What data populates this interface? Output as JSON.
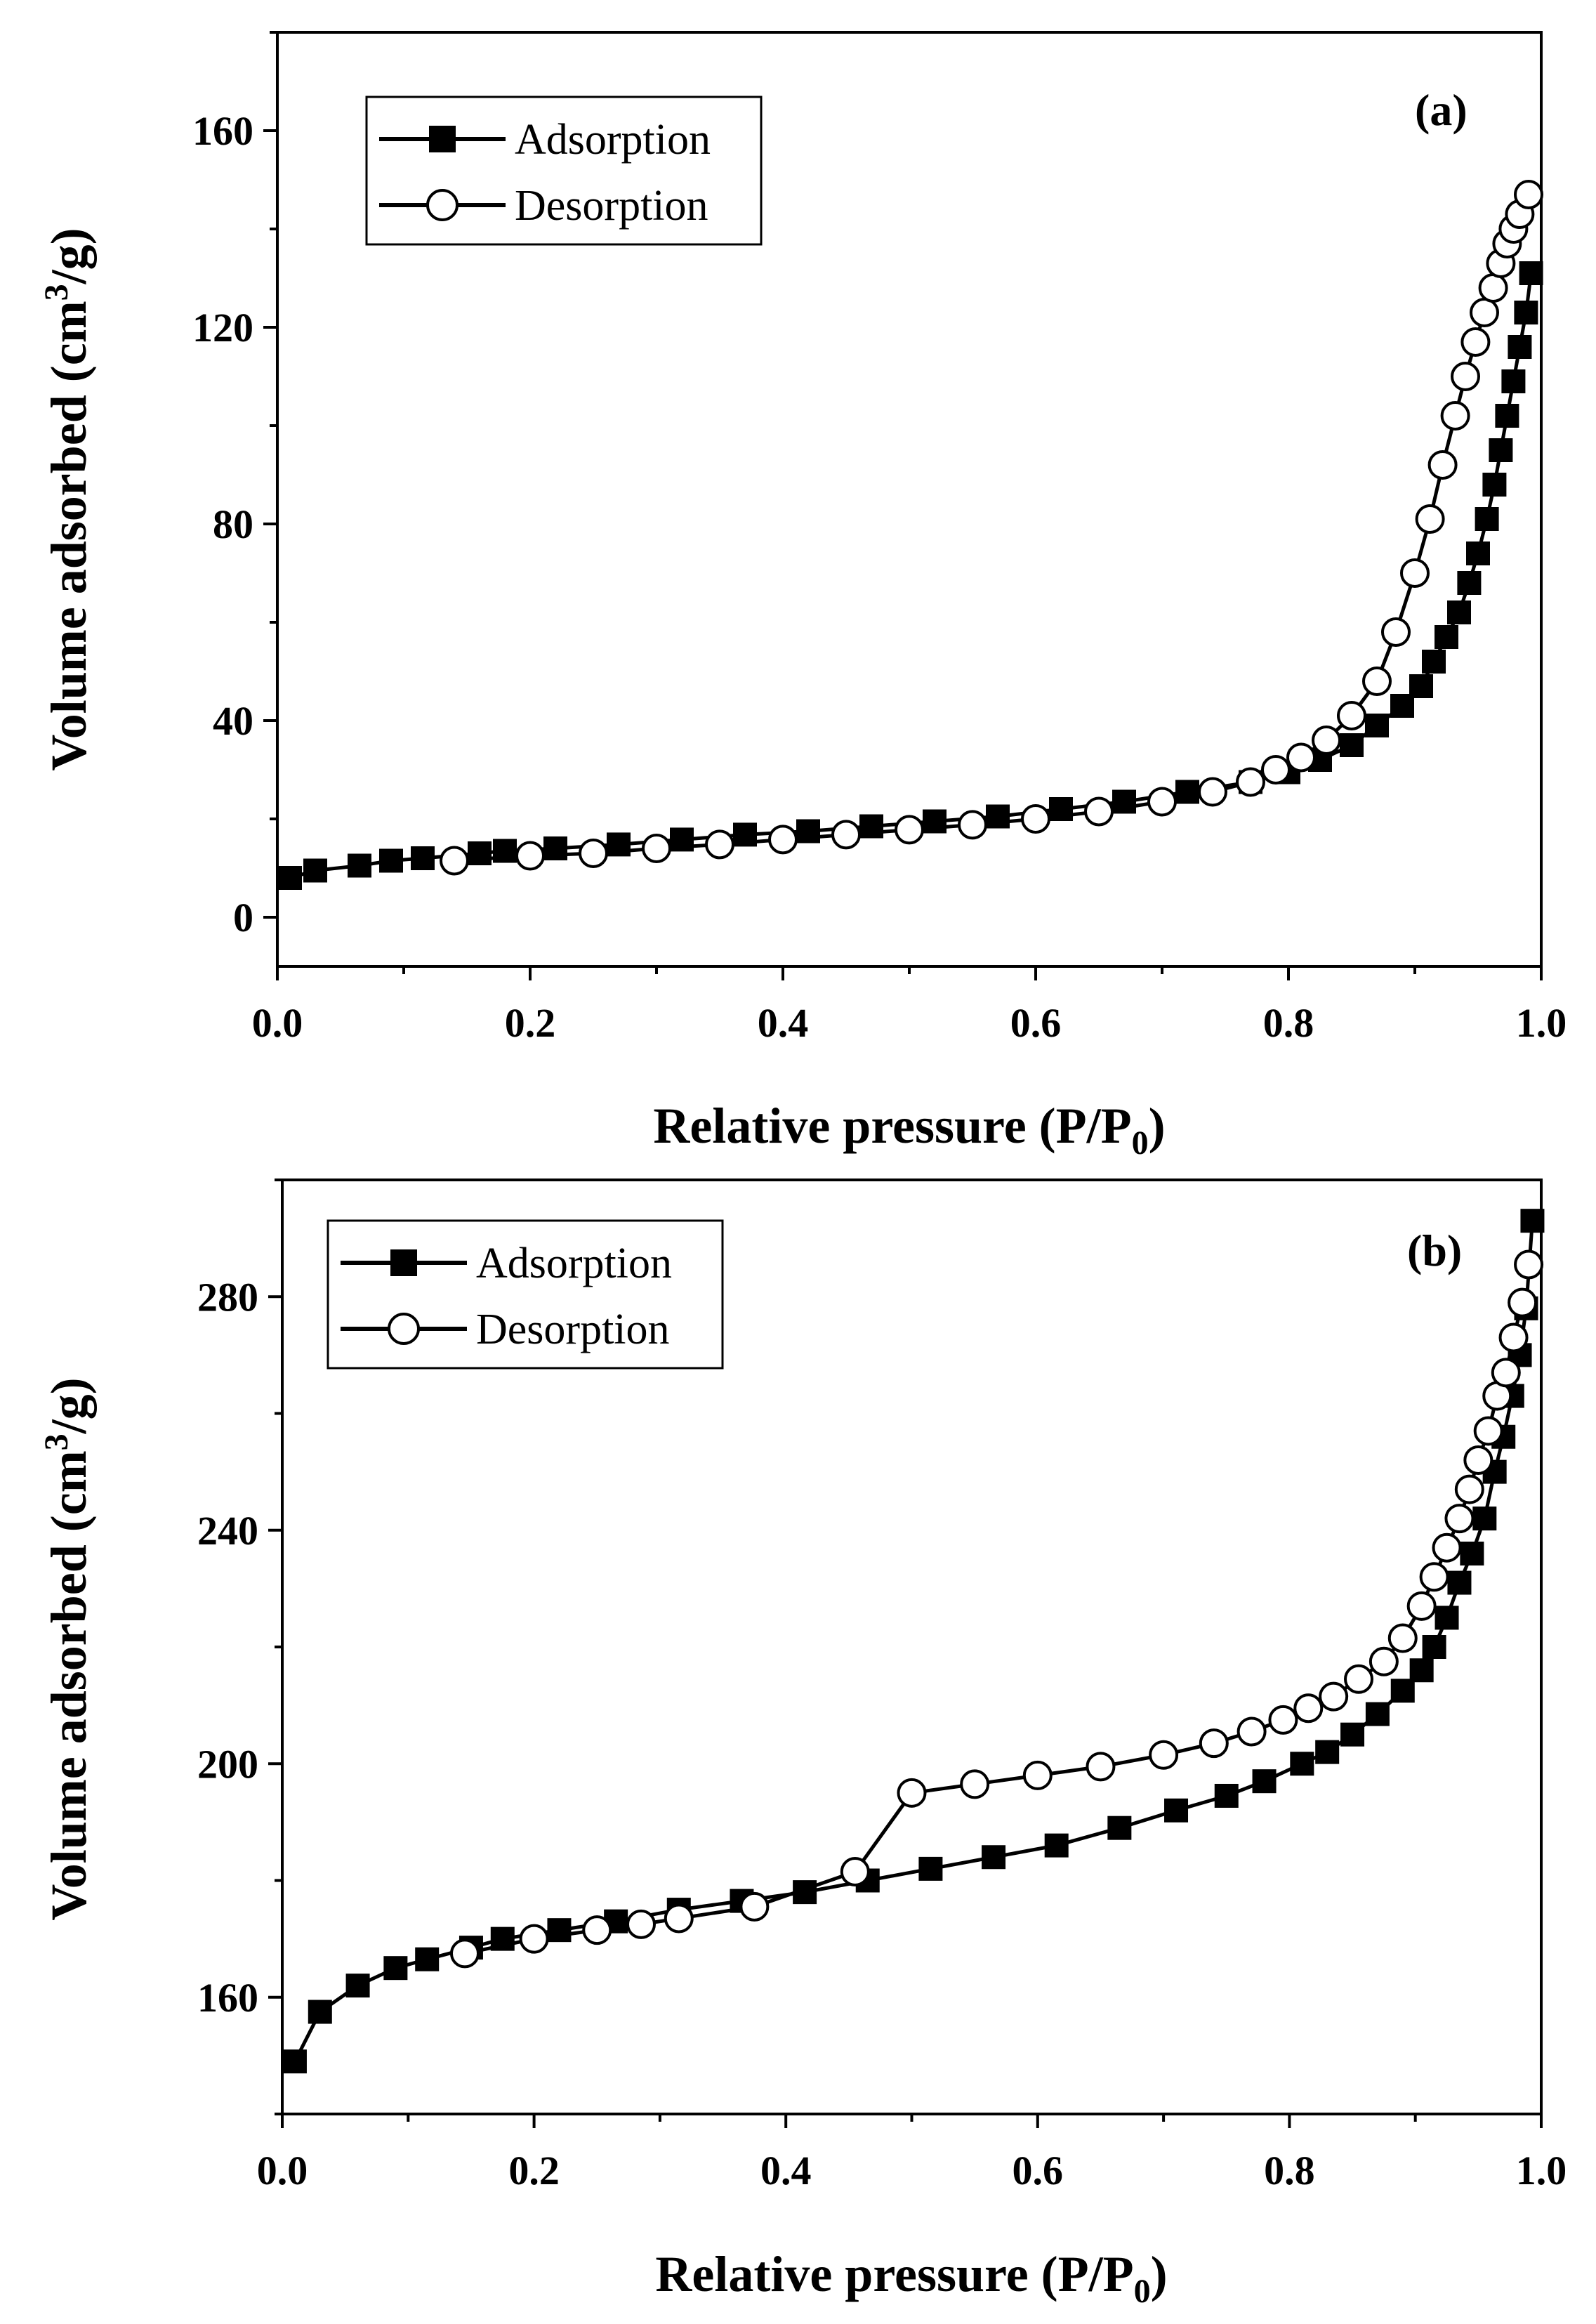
{
  "chart_data": [
    {
      "panel": "a",
      "type": "line",
      "label": "(a)",
      "xlabel": "Relative pressure (P/P",
      "xlabel_sub": "0",
      "xlabel_close": ")",
      "ylabel": "Volume adsorbed (cm",
      "ylabel_sup": "3",
      "ylabel_tail": "/g)",
      "xlim": [
        0,
        1.0
      ],
      "ylim": [
        -10,
        180
      ],
      "xticks": [
        0.0,
        0.2,
        0.4,
        0.6,
        0.8,
        1.0
      ],
      "xtick_labels": [
        "0.0",
        "0.2",
        "0.4",
        "0.6",
        "0.8",
        "1.0"
      ],
      "yticks": [
        0,
        40,
        80,
        120,
        160
      ],
      "ytick_labels": [
        "0",
        "40",
        "80",
        "120",
        "160"
      ],
      "legend": [
        "Adsorption",
        "Desorption"
      ],
      "series": [
        {
          "name": "Adsorption",
          "marker": "filled-square",
          "x": [
            0.01,
            0.03,
            0.065,
            0.09,
            0.115,
            0.16,
            0.18,
            0.22,
            0.27,
            0.32,
            0.37,
            0.42,
            0.47,
            0.52,
            0.57,
            0.62,
            0.67,
            0.72,
            0.77,
            0.8,
            0.825,
            0.85,
            0.87,
            0.89,
            0.905,
            0.915,
            0.925,
            0.935,
            0.943,
            0.95,
            0.957,
            0.963,
            0.968,
            0.973,
            0.978,
            0.983,
            0.988,
            0.992
          ],
          "y": [
            8,
            9.5,
            10.5,
            11.5,
            12,
            13,
            13.5,
            14,
            14.8,
            15.8,
            16.8,
            17.5,
            18.5,
            19.5,
            20.5,
            22,
            23.5,
            25.5,
            27.5,
            29.5,
            32,
            35,
            39,
            43,
            47,
            52,
            57,
            62,
            68,
            74,
            81,
            88,
            95,
            102,
            109,
            116,
            123,
            131
          ]
        },
        {
          "name": "Desorption",
          "marker": "open-circle",
          "x": [
            0.14,
            0.2,
            0.25,
            0.3,
            0.35,
            0.4,
            0.45,
            0.5,
            0.55,
            0.6,
            0.65,
            0.7,
            0.74,
            0.77,
            0.79,
            0.81,
            0.83,
            0.85,
            0.87,
            0.885,
            0.9,
            0.912,
            0.922,
            0.932,
            0.94,
            0.948,
            0.955,
            0.962,
            0.968,
            0.973,
            0.978,
            0.983,
            0.99
          ],
          "y": [
            11.5,
            12.5,
            13,
            14,
            14.8,
            15.8,
            16.8,
            17.8,
            18.8,
            20,
            21.5,
            23.5,
            25.5,
            27.5,
            30,
            32.5,
            36,
            41,
            48,
            58,
            70,
            81,
            92,
            102,
            110,
            117,
            123,
            128,
            133,
            137,
            140,
            143,
            147
          ]
        }
      ]
    },
    {
      "panel": "b",
      "type": "line",
      "label": "(b)",
      "xlabel": "Relative pressure (P/P",
      "xlabel_sub": "0",
      "xlabel_close": ")",
      "ylabel": "Volume adsorbed (cm",
      "ylabel_sup": "3",
      "ylabel_tail": "/g)",
      "xlim": [
        0,
        1.0
      ],
      "ylim": [
        140,
        300
      ],
      "xticks": [
        0.0,
        0.2,
        0.4,
        0.6,
        0.8,
        1.0
      ],
      "xtick_labels": [
        "0.0",
        "0.2",
        "0.4",
        "0.6",
        "0.8",
        "1.0"
      ],
      "yticks": [
        160,
        200,
        240,
        280
      ],
      "ytick_labels": [
        "160",
        "200",
        "240",
        "280"
      ],
      "legend": [
        "Adsorption",
        "Desorption"
      ],
      "series": [
        {
          "name": "Adsorption",
          "marker": "filled-square",
          "x": [
            0.01,
            0.03,
            0.06,
            0.09,
            0.115,
            0.15,
            0.175,
            0.22,
            0.265,
            0.315,
            0.365,
            0.415,
            0.465,
            0.515,
            0.565,
            0.615,
            0.665,
            0.71,
            0.75,
            0.78,
            0.81,
            0.83,
            0.85,
            0.87,
            0.89,
            0.905,
            0.915,
            0.925,
            0.935,
            0.945,
            0.955,
            0.963,
            0.97,
            0.977,
            0.983,
            0.988,
            0.993
          ],
          "y": [
            149,
            157.5,
            162,
            165,
            166.5,
            168.5,
            170,
            171.5,
            173,
            175,
            176.5,
            178,
            180,
            182,
            184,
            186,
            189,
            192,
            194.5,
            197,
            200,
            202,
            205,
            208.5,
            212.5,
            216,
            220,
            225,
            231,
            236,
            242,
            250,
            256,
            263,
            270,
            278,
            293
          ]
        },
        {
          "name": "Desorption",
          "marker": "open-circle",
          "x": [
            0.145,
            0.2,
            0.25,
            0.285,
            0.315,
            0.375,
            0.455,
            0.5,
            0.55,
            0.6,
            0.65,
            0.7,
            0.74,
            0.77,
            0.795,
            0.815,
            0.835,
            0.855,
            0.875,
            0.89,
            0.905,
            0.915,
            0.925,
            0.935,
            0.943,
            0.95,
            0.958,
            0.965,
            0.972,
            0.978,
            0.985
          ],
          "y": [
            167.5,
            170,
            171.5,
            172.5,
            173.5,
            175.5,
            181.5,
            195,
            196.5,
            198,
            199.5,
            201.5,
            203.5,
            205.5,
            207.5,
            209.5,
            211.5,
            214.5,
            217.5,
            221.5,
            227,
            232,
            237,
            242,
            247,
            252,
            257,
            263,
            267,
            273,
            279
          ]
        }
      ],
      "extra_point": {
        "series": "Desorption",
        "x": 0.99,
        "y": 285.5
      }
    }
  ]
}
